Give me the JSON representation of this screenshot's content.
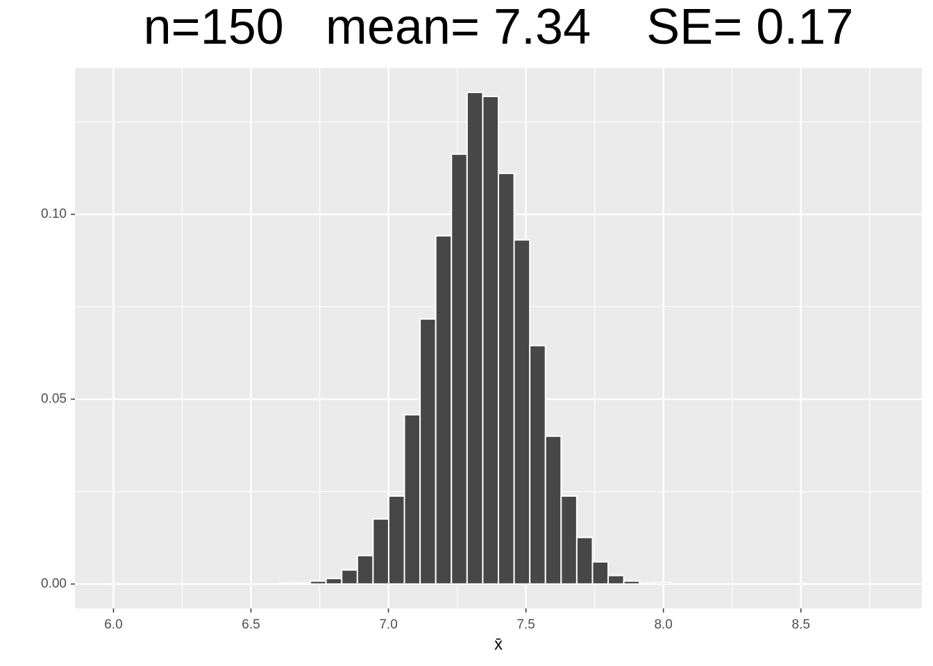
{
  "chart_data": {
    "type": "histogram",
    "title": "n=150   mean= 7.34    SE= 0.17",
    "xlabel": "x̄",
    "bins": [
      6.602,
      6.659,
      6.716,
      6.773,
      6.83,
      6.887,
      6.944,
      7.001,
      7.058,
      7.115,
      7.172,
      7.229,
      7.286,
      7.343,
      7.4,
      7.457,
      7.514,
      7.571,
      7.628,
      7.685,
      7.742,
      7.799,
      7.856,
      7.913,
      7.97,
      8.027
    ],
    "values": [
      0.0002,
      0.0003,
      0.0008,
      0.0015,
      0.0038,
      0.0077,
      0.0176,
      0.0238,
      0.0458,
      0.0717,
      0.0942,
      0.1163,
      0.133,
      0.1319,
      0.1111,
      0.0931,
      0.0645,
      0.04,
      0.0238,
      0.0126,
      0.006,
      0.0023,
      0.0008,
      0.0002,
      0.0004
    ],
    "color": "#474747",
    "edgecolor": "#ffffff",
    "xlim": [
      5.86,
      8.94
    ],
    "ylim": [
      -0.0066,
      0.1396
    ],
    "xticks": [
      {
        "value": 6.0,
        "label": "6.0"
      },
      {
        "value": 6.5,
        "label": "6.5"
      },
      {
        "value": 7.0,
        "label": "7.0"
      },
      {
        "value": 7.5,
        "label": "7.5"
      },
      {
        "value": 8.0,
        "label": "8.0"
      },
      {
        "value": 8.5,
        "label": "8.5"
      }
    ],
    "yticks": [
      {
        "value": 0.0,
        "label": "0.00"
      },
      {
        "value": 0.05,
        "label": "0.05"
      },
      {
        "value": 0.1,
        "label": "0.10"
      }
    ],
    "xminorticks": [
      6.25,
      6.75,
      7.25,
      7.75,
      8.25,
      8.75
    ],
    "yminorticks": [
      0.025,
      0.075,
      0.125
    ],
    "grid": true
  }
}
